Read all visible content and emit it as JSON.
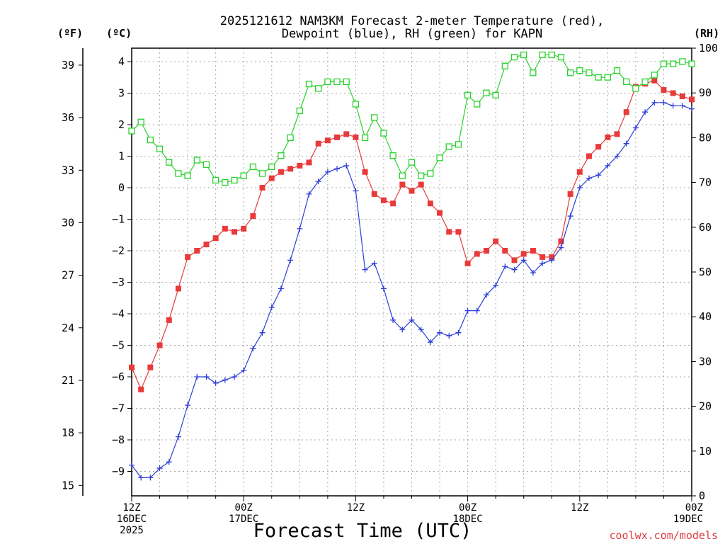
{
  "chart_data": {
    "type": "line",
    "title_line1": "2025121612 NAM3KM Forecast 2-meter Temperature (red),",
    "title_line2": "Dewpoint (blue), RH (green) for KAPN",
    "left_unit_f": "(ºF)",
    "left_unit_c": "(ºC)",
    "right_unit": "(RH)",
    "xlabel": "Forecast Time (UTC)",
    "credit": "coolwx.com/models",
    "x_range_hours": [
      0,
      60
    ],
    "celsius_range": [
      -10,
      4.6
    ],
    "rh_range": [
      0,
      100
    ],
    "celsius_ticks": [
      "4",
      "3",
      "2",
      "1",
      "0",
      "−1",
      "−2",
      "−3",
      "−4",
      "−5",
      "−6",
      "−7",
      "−8",
      "−9"
    ],
    "fahrenheit_ticks": [
      "39",
      "36",
      "33",
      "30",
      "27",
      "24",
      "21",
      "18",
      "15"
    ],
    "rh_ticks": [
      "100",
      "90",
      "80",
      "70",
      "60",
      "50",
      "40",
      "30",
      "20",
      "10",
      "0"
    ],
    "x_ticks": [
      {
        "hour": 0,
        "line1": "12Z",
        "line2": "16DEC",
        "line3": "2025"
      },
      {
        "hour": 12,
        "line1": "00Z",
        "line2": "17DEC",
        "line3": ""
      },
      {
        "hour": 24,
        "line1": "12Z",
        "line2": "",
        "line3": ""
      },
      {
        "hour": 36,
        "line1": "00Z",
        "line2": "18DEC",
        "line3": ""
      },
      {
        "hour": 48,
        "line1": "12Z",
        "line2": "",
        "line3": ""
      },
      {
        "hour": 60,
        "line1": "00Z",
        "line2": "19DEC",
        "line3": ""
      }
    ],
    "series": [
      {
        "name": "Temperature",
        "unit": "C",
        "color": "#e83a3a",
        "marker": "filled-square",
        "values": [
          -5.7,
          -6.4,
          -5.7,
          -5.0,
          -4.2,
          -3.2,
          -2.2,
          -2.0,
          -1.8,
          -1.6,
          -1.3,
          -1.4,
          -1.3,
          -0.9,
          0.0,
          0.3,
          0.5,
          0.6,
          0.7,
          0.8,
          1.4,
          1.5,
          1.6,
          1.7,
          1.6,
          0.5,
          -0.2,
          -0.4,
          -0.5,
          0.1,
          -0.1,
          0.1,
          -0.5,
          -0.8,
          -1.4,
          -1.4,
          -2.4,
          -2.1,
          -2.0,
          -1.7,
          -2.0,
          -2.3,
          -2.1,
          -2.0,
          -2.2,
          -2.2,
          -1.7,
          -0.2,
          0.5,
          1.0,
          1.3,
          1.6,
          1.7,
          2.4,
          3.2,
          3.3,
          3.4,
          3.1,
          3.0,
          2.9,
          2.8
        ]
      },
      {
        "name": "Dewpoint",
        "unit": "C",
        "color": "#2e3fd8",
        "marker": "plus",
        "values": [
          -8.8,
          -9.2,
          -9.2,
          -8.9,
          -8.7,
          -7.9,
          -6.9,
          -6.0,
          -6.0,
          -6.2,
          -6.1,
          -6.0,
          -5.8,
          -5.1,
          -4.6,
          -3.8,
          -3.2,
          -2.3,
          -1.3,
          -0.2,
          0.2,
          0.5,
          0.6,
          0.7,
          -0.1,
          -2.6,
          -2.4,
          -3.2,
          -4.2,
          -4.5,
          -4.2,
          -4.5,
          -4.9,
          -4.6,
          -4.7,
          -4.6,
          -3.9,
          -3.9,
          -3.4,
          -3.1,
          -2.5,
          -2.6,
          -2.3,
          -2.7,
          -2.4,
          -2.3,
          -1.9,
          -0.9,
          0.0,
          0.3,
          0.4,
          0.7,
          1.0,
          1.4,
          1.9,
          2.4,
          2.7,
          2.7,
          2.6,
          2.6,
          2.5
        ]
      },
      {
        "name": "RH",
        "unit": "%",
        "color": "#28d22b",
        "marker": "open-square",
        "values": [
          81.5,
          83.5,
          79.5,
          77.5,
          74.5,
          72.0,
          71.5,
          75.0,
          74.0,
          70.5,
          70.0,
          70.5,
          71.5,
          73.5,
          72.0,
          73.5,
          76.0,
          80.0,
          86.0,
          92.0,
          91.0,
          92.5,
          92.5,
          92.5,
          87.5,
          80.0,
          84.5,
          81.0,
          76.0,
          71.5,
          74.5,
          71.5,
          72.0,
          75.5,
          78.0,
          78.5,
          89.5,
          87.5,
          90.0,
          89.5,
          96.0,
          98.0,
          98.5,
          94.5,
          98.5,
          98.5,
          98.0,
          94.5,
          95.0,
          94.5,
          93.5,
          93.5,
          95.0,
          92.5,
          91.0,
          92.5,
          94.0,
          96.5,
          96.5,
          97.0,
          96.5
        ]
      }
    ]
  }
}
